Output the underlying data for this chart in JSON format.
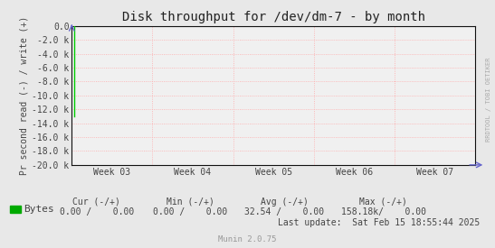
{
  "title": "Disk throughput for /dev/dm-7 - by month",
  "ylabel": "Pr second read (-) / write (+)",
  "xlabel_ticks": [
    "Week 03",
    "Week 04",
    "Week 05",
    "Week 06",
    "Week 07"
  ],
  "ylim": [
    -20000,
    0
  ],
  "yticks": [
    0,
    -2000,
    -4000,
    -6000,
    -8000,
    -10000,
    -12000,
    -14000,
    -16000,
    -18000,
    -20000
  ],
  "ytick_labels": [
    "0.0",
    "-2.0 k",
    "-4.0 k",
    "-6.0 k",
    "-8.0 k",
    "-10.0 k",
    "-12.0 k",
    "-14.0 k",
    "-16.0 k",
    "-18.0 k",
    "-20.0 k"
  ],
  "plot_bg": "#f0f0f0",
  "grid_color": "#ffaaaa",
  "border_color": "#111111",
  "line_color": "#00cc00",
  "title_color": "#222222",
  "tick_color": "#444444",
  "legend_label": "Bytes",
  "legend_color": "#00aa00",
  "last_update": "Last update:  Sat Feb 15 18:55:44 2025",
  "munin_label": "Munin 2.0.75",
  "right_label": "RRDTOOL / TOBI OETIKER",
  "bg_color": "#e8e8e8",
  "arrow_color": "#6666cc",
  "cur_header": "Cur (-/+)",
  "min_header": "Min (-/+)",
  "avg_header": "Avg (-/+)",
  "max_header": "Max (-/+)",
  "cur_val": "0.00 /    0.00",
  "min_val": "0.00 /    0.00",
  "avg_val": "32.54 /    0.00",
  "max_val": "158.18k/    0.00"
}
